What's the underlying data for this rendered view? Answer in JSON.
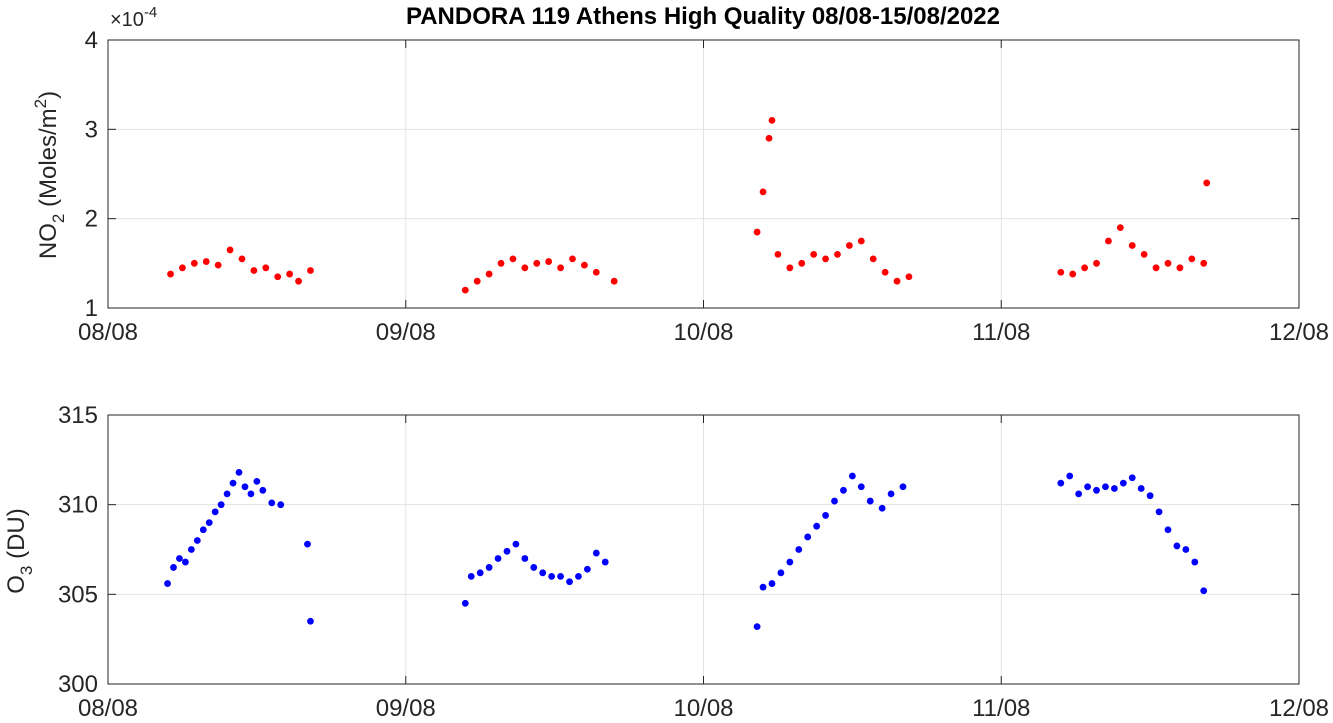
{
  "title": "PANDORA 119 Athens High Quality 08/08-15/08/2022",
  "chart_data": [
    {
      "type": "scatter",
      "ylabel": "NO2 (Moles/m2)",
      "y_exponent": "×10-4",
      "ylim": [
        1,
        4
      ],
      "yticks": [
        1,
        2,
        3,
        4
      ],
      "xlim": [
        "08/08",
        "12/08"
      ],
      "xticks": [
        "08/08",
        "09/08",
        "10/08",
        "11/08",
        "12/08"
      ],
      "grid": true,
      "color": "#ff0000",
      "series": [
        {
          "x": [
            8.21,
            8.25,
            8.29,
            8.33,
            8.37,
            8.41,
            8.45,
            8.49,
            8.53,
            8.57,
            8.61,
            8.64,
            8.68,
            9.2,
            9.24,
            9.28,
            9.32,
            9.36,
            9.4,
            9.44,
            9.48,
            9.52,
            9.56,
            9.6,
            9.64,
            9.7,
            10.18,
            10.2,
            10.22,
            10.23,
            10.25,
            10.29,
            10.33,
            10.37,
            10.41,
            10.45,
            10.49,
            10.53,
            10.57,
            10.61,
            10.65,
            10.69,
            11.2,
            11.24,
            11.28,
            11.32,
            11.36,
            11.4,
            11.44,
            11.48,
            11.52,
            11.56,
            11.6,
            11.64,
            11.68,
            11.69
          ],
          "y": [
            1.38,
            1.45,
            1.5,
            1.52,
            1.48,
            1.65,
            1.55,
            1.42,
            1.45,
            1.35,
            1.38,
            1.3,
            1.42,
            1.2,
            1.3,
            1.38,
            1.5,
            1.55,
            1.45,
            1.5,
            1.52,
            1.45,
            1.55,
            1.48,
            1.4,
            1.3,
            1.85,
            2.3,
            2.9,
            3.1,
            1.6,
            1.45,
            1.5,
            1.6,
            1.55,
            1.6,
            1.7,
            1.75,
            1.55,
            1.4,
            1.3,
            1.35,
            1.4,
            1.38,
            1.45,
            1.5,
            1.75,
            1.9,
            1.7,
            1.6,
            1.45,
            1.5,
            1.45,
            1.55,
            1.5,
            2.4
          ]
        }
      ]
    },
    {
      "type": "scatter",
      "ylabel": "O3 (DU)",
      "ylim": [
        300,
        315
      ],
      "yticks": [
        300,
        305,
        310,
        315
      ],
      "xlim": [
        "08/08",
        "12/08"
      ],
      "xticks": [
        "08/08",
        "09/08",
        "10/08",
        "11/08",
        "12/08"
      ],
      "grid": true,
      "color": "#0000ff",
      "series": [
        {
          "x": [
            8.2,
            8.22,
            8.24,
            8.26,
            8.28,
            8.3,
            8.32,
            8.34,
            8.36,
            8.38,
            8.4,
            8.42,
            8.44,
            8.46,
            8.48,
            8.5,
            8.52,
            8.55,
            8.58,
            8.67,
            8.68,
            9.2,
            9.22,
            9.25,
            9.28,
            9.31,
            9.34,
            9.37,
            9.4,
            9.43,
            9.46,
            9.49,
            9.52,
            9.55,
            9.58,
            9.61,
            9.64,
            9.67,
            10.18,
            10.2,
            10.23,
            10.26,
            10.29,
            10.32,
            10.35,
            10.38,
            10.41,
            10.44,
            10.47,
            10.5,
            10.53,
            10.56,
            10.6,
            10.63,
            10.67,
            11.2,
            11.23,
            11.26,
            11.29,
            11.32,
            11.35,
            11.38,
            11.41,
            11.44,
            11.47,
            11.5,
            11.53,
            11.56,
            11.59,
            11.62,
            11.65,
            11.68
          ],
          "y": [
            305.6,
            306.5,
            307.0,
            306.8,
            307.5,
            308.0,
            308.6,
            309.0,
            309.6,
            310.0,
            310.6,
            311.2,
            311.8,
            311.0,
            310.6,
            311.3,
            310.8,
            310.1,
            310.0,
            307.8,
            303.5,
            304.5,
            306.0,
            306.2,
            306.5,
            307.0,
            307.4,
            307.8,
            307.0,
            306.5,
            306.2,
            306.0,
            306.0,
            305.7,
            306.0,
            306.4,
            307.3,
            306.8,
            303.2,
            305.4,
            305.6,
            306.2,
            306.8,
            307.5,
            308.2,
            308.8,
            309.4,
            310.2,
            310.8,
            311.6,
            311.0,
            310.2,
            309.8,
            310.6,
            311.0,
            311.2,
            311.6,
            310.6,
            311.0,
            310.8,
            311.0,
            310.9,
            311.2,
            311.5,
            310.9,
            310.5,
            309.6,
            308.6,
            307.7,
            307.5,
            306.8,
            305.2
          ]
        }
      ]
    }
  ]
}
